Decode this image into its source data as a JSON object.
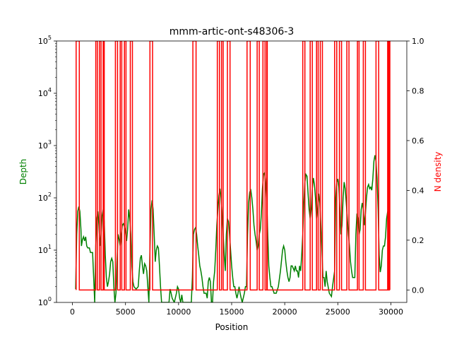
{
  "chart_data": {
    "type": "line",
    "title": "mmm-artic-ont-s48306-3",
    "xlabel": "Position",
    "ylabel_left": "Depth",
    "ylabel_right": "N density",
    "xlim": [
      -1500,
      31500
    ],
    "ylim_left": [
      1,
      100000
    ],
    "yscale_left": "log",
    "ylim_right": [
      -0.05,
      1.0
    ],
    "grid": false,
    "legend": "none",
    "x_ticks": [
      0,
      5000,
      10000,
      15000,
      20000,
      25000,
      30000
    ],
    "x_tick_labels": [
      "0",
      "5000",
      "10000",
      "15000",
      "20000",
      "25000",
      "30000"
    ],
    "left_tick_bases": [
      "10",
      "10",
      "10",
      "10",
      "10",
      "10"
    ],
    "left_tick_exps": [
      "0",
      "1",
      "2",
      "3",
      "4",
      "5"
    ],
    "right_ticks": [
      0.0,
      0.2,
      0.4,
      0.6,
      0.8,
      1.0
    ],
    "right_tick_labels": [
      "0.0",
      "0.2",
      "0.4",
      "0.6",
      "0.8",
      "1.0"
    ],
    "colors": {
      "depth": "#008000",
      "n_density": "#ff0000"
    },
    "series": [
      {
        "axis": "left",
        "color": "#008000",
        "points": [
          [
            300,
            1.8
          ],
          [
            400,
            20
          ],
          [
            500,
            55
          ],
          [
            600,
            68
          ],
          [
            700,
            55
          ],
          [
            800,
            25
          ],
          [
            850,
            12
          ],
          [
            950,
            16
          ],
          [
            1050,
            18
          ],
          [
            1150,
            15
          ],
          [
            1250,
            18
          ],
          [
            1350,
            12
          ],
          [
            1450,
            11
          ],
          [
            1600,
            11
          ],
          [
            1700,
            9
          ],
          [
            1800,
            9
          ],
          [
            1900,
            9
          ],
          [
            2000,
            3
          ],
          [
            2100,
            1
          ],
          [
            2200,
            12
          ],
          [
            2300,
            40
          ],
          [
            2400,
            55
          ],
          [
            2500,
            30
          ],
          [
            2600,
            12
          ],
          [
            2700,
            20
          ],
          [
            2800,
            45
          ],
          [
            2900,
            60
          ],
          [
            3000,
            35
          ],
          [
            3100,
            8
          ],
          [
            3200,
            3
          ],
          [
            3300,
            2
          ],
          [
            3400,
            2.5
          ],
          [
            3500,
            3.5
          ],
          [
            3600,
            6
          ],
          [
            3700,
            7
          ],
          [
            3800,
            6
          ],
          [
            3900,
            2
          ],
          [
            4000,
            1
          ],
          [
            4100,
            1.5
          ],
          [
            4200,
            6
          ],
          [
            4300,
            20
          ],
          [
            4400,
            16
          ],
          [
            4500,
            12
          ],
          [
            4600,
            20
          ],
          [
            4700,
            30
          ],
          [
            4800,
            32
          ],
          [
            4900,
            28
          ],
          [
            5000,
            22
          ],
          [
            5100,
            15
          ],
          [
            5200,
            25
          ],
          [
            5300,
            60
          ],
          [
            5400,
            40
          ],
          [
            5500,
            20
          ],
          [
            5600,
            5
          ],
          [
            5700,
            2.5
          ],
          [
            5800,
            2
          ],
          [
            6000,
            1.8
          ],
          [
            6200,
            2
          ],
          [
            6300,
            4
          ],
          [
            6400,
            7
          ],
          [
            6500,
            8
          ],
          [
            6600,
            5
          ],
          [
            6700,
            3.5
          ],
          [
            6800,
            5.5
          ],
          [
            6900,
            5
          ],
          [
            7000,
            4
          ],
          [
            7100,
            2
          ],
          [
            7200,
            1
          ],
          [
            7300,
            10
          ],
          [
            7400,
            60
          ],
          [
            7500,
            90
          ],
          [
            7600,
            60
          ],
          [
            7700,
            20
          ],
          [
            7800,
            6
          ],
          [
            7900,
            10
          ],
          [
            8000,
            12
          ],
          [
            8100,
            11
          ],
          [
            8200,
            5
          ],
          [
            8300,
            2
          ],
          [
            8400,
            1
          ],
          [
            8600,
            1
          ],
          [
            8800,
            1
          ],
          [
            9000,
            1
          ],
          [
            9100,
            1
          ],
          [
            9200,
            1.8
          ],
          [
            9300,
            1.5
          ],
          [
            9400,
            1.2
          ],
          [
            9600,
            1
          ],
          [
            9800,
            1.5
          ],
          [
            9900,
            2
          ],
          [
            10000,
            1.8
          ],
          [
            10100,
            1.2
          ],
          [
            10200,
            1
          ],
          [
            10300,
            1.4
          ],
          [
            10400,
            1
          ],
          [
            10600,
            1
          ],
          [
            10800,
            1
          ],
          [
            11000,
            1
          ],
          [
            11200,
            1
          ],
          [
            11300,
            3
          ],
          [
            11400,
            20
          ],
          [
            11500,
            25
          ],
          [
            11600,
            27
          ],
          [
            11700,
            20
          ],
          [
            11800,
            12
          ],
          [
            11900,
            8
          ],
          [
            12000,
            5
          ],
          [
            12100,
            4
          ],
          [
            12200,
            3
          ],
          [
            12300,
            2
          ],
          [
            12400,
            1.5
          ],
          [
            12500,
            1.5
          ],
          [
            12600,
            1.5
          ],
          [
            12700,
            1.2
          ],
          [
            12800,
            2.5
          ],
          [
            12900,
            3
          ],
          [
            13000,
            2.5
          ],
          [
            13100,
            1
          ],
          [
            13200,
            1
          ],
          [
            13300,
            2.5
          ],
          [
            13400,
            4
          ],
          [
            13500,
            10
          ],
          [
            13600,
            30
          ],
          [
            13700,
            60
          ],
          [
            13800,
            110
          ],
          [
            13900,
            150
          ],
          [
            14000,
            100
          ],
          [
            14100,
            50
          ],
          [
            14200,
            20
          ],
          [
            14300,
            8
          ],
          [
            14400,
            4
          ],
          [
            14500,
            20
          ],
          [
            14600,
            40
          ],
          [
            14700,
            35
          ],
          [
            14800,
            20
          ],
          [
            14900,
            10
          ],
          [
            15000,
            5
          ],
          [
            15100,
            3
          ],
          [
            15200,
            2
          ],
          [
            15300,
            2
          ],
          [
            15400,
            1.5
          ],
          [
            15500,
            1.2
          ],
          [
            15600,
            1.5
          ],
          [
            15700,
            2
          ],
          [
            15800,
            1.5
          ],
          [
            15900,
            1.2
          ],
          [
            16000,
            1
          ],
          [
            16200,
            1.5
          ],
          [
            16300,
            2
          ],
          [
            16400,
            2
          ],
          [
            16500,
            20
          ],
          [
            16600,
            80
          ],
          [
            16700,
            130
          ],
          [
            16800,
            140
          ],
          [
            16900,
            100
          ],
          [
            17000,
            60
          ],
          [
            17100,
            30
          ],
          [
            17200,
            20
          ],
          [
            17300,
            15
          ],
          [
            17400,
            10
          ],
          [
            17500,
            12
          ],
          [
            17600,
            20
          ],
          [
            17700,
            25
          ],
          [
            17800,
            50
          ],
          [
            17900,
            150
          ],
          [
            18000,
            280
          ],
          [
            18100,
            300
          ],
          [
            18200,
            200
          ],
          [
            18300,
            100
          ],
          [
            18400,
            20
          ],
          [
            18500,
            5
          ],
          [
            18600,
            3
          ],
          [
            18700,
            2
          ],
          [
            18800,
            2
          ],
          [
            19000,
            1.5
          ],
          [
            19200,
            1.5
          ],
          [
            19400,
            2
          ],
          [
            19600,
            4
          ],
          [
            19800,
            10
          ],
          [
            19900,
            12
          ],
          [
            20000,
            10
          ],
          [
            20100,
            6
          ],
          [
            20200,
            4
          ],
          [
            20300,
            3
          ],
          [
            20400,
            2.5
          ],
          [
            20500,
            3
          ],
          [
            20600,
            5
          ],
          [
            20700,
            5
          ],
          [
            20800,
            4.5
          ],
          [
            20900,
            4
          ],
          [
            21000,
            5
          ],
          [
            21100,
            4
          ],
          [
            21200,
            4
          ],
          [
            21300,
            3
          ],
          [
            21400,
            5
          ],
          [
            21500,
            4
          ],
          [
            21600,
            8
          ],
          [
            21700,
            20
          ],
          [
            21800,
            80
          ],
          [
            21900,
            200
          ],
          [
            22000,
            280
          ],
          [
            22100,
            260
          ],
          [
            22200,
            120
          ],
          [
            22300,
            60
          ],
          [
            22400,
            40
          ],
          [
            22500,
            60
          ],
          [
            22600,
            150
          ],
          [
            22700,
            240
          ],
          [
            22800,
            180
          ],
          [
            22900,
            100
          ],
          [
            23000,
            40
          ],
          [
            23100,
            60
          ],
          [
            23200,
            120
          ],
          [
            23300,
            80
          ],
          [
            23400,
            30
          ],
          [
            23500,
            10
          ],
          [
            23600,
            3
          ],
          [
            23700,
            3
          ],
          [
            23800,
            2
          ],
          [
            23900,
            4
          ],
          [
            24000,
            2.5
          ],
          [
            24200,
            1.5
          ],
          [
            24400,
            1.3
          ],
          [
            24500,
            2
          ],
          [
            24700,
            4
          ],
          [
            24800,
            100
          ],
          [
            24900,
            200
          ],
          [
            25000,
            230
          ],
          [
            25100,
            160
          ],
          [
            25200,
            60
          ],
          [
            25300,
            20
          ],
          [
            25400,
            30
          ],
          [
            25500,
            100
          ],
          [
            25600,
            200
          ],
          [
            25700,
            150
          ],
          [
            25800,
            80
          ],
          [
            25900,
            40
          ],
          [
            26000,
            20
          ],
          [
            26100,
            12
          ],
          [
            26200,
            6
          ],
          [
            26300,
            4
          ],
          [
            26400,
            3
          ],
          [
            26500,
            3
          ],
          [
            26600,
            3
          ],
          [
            26700,
            20
          ],
          [
            26800,
            50
          ],
          [
            26900,
            40
          ],
          [
            27000,
            20
          ],
          [
            27100,
            25
          ],
          [
            27200,
            60
          ],
          [
            27300,
            80
          ],
          [
            27400,
            60
          ],
          [
            27500,
            30
          ],
          [
            27600,
            50
          ],
          [
            27700,
            100
          ],
          [
            27800,
            160
          ],
          [
            27900,
            180
          ],
          [
            28000,
            150
          ],
          [
            28100,
            160
          ],
          [
            28200,
            140
          ],
          [
            28300,
            230
          ],
          [
            28400,
            500
          ],
          [
            28500,
            650
          ],
          [
            28600,
            500
          ],
          [
            28700,
            230
          ],
          [
            28800,
            60
          ],
          [
            28900,
            8
          ],
          [
            29000,
            3.8
          ],
          [
            29100,
            5
          ],
          [
            29200,
            10
          ],
          [
            29300,
            12
          ],
          [
            29400,
            12
          ],
          [
            29500,
            18
          ],
          [
            29600,
            40
          ],
          [
            29700,
            55
          ],
          [
            29800,
            10
          ],
          [
            29850,
            5
          ]
        ]
      },
      {
        "axis": "right",
        "color": "#ff0000",
        "regions_n1": [
          [
            350,
            650
          ],
          [
            2200,
            2350
          ],
          [
            2550,
            2700
          ],
          [
            2900,
            3000
          ],
          [
            4050,
            4250
          ],
          [
            4500,
            4650
          ],
          [
            4900,
            5050
          ],
          [
            5450,
            5650
          ],
          [
            7300,
            7550
          ],
          [
            11350,
            11650
          ],
          [
            13650,
            13850
          ],
          [
            14050,
            14200
          ],
          [
            14600,
            14850
          ],
          [
            16450,
            16750
          ],
          [
            17400,
            17600
          ],
          [
            17950,
            18150
          ],
          [
            18300,
            18350
          ],
          [
            21700,
            21900
          ],
          [
            22400,
            22600
          ],
          [
            23000,
            23150
          ],
          [
            23350,
            23550
          ],
          [
            24700,
            24900
          ],
          [
            25150,
            25350
          ],
          [
            25850,
            26050
          ],
          [
            26850,
            27000
          ],
          [
            27400,
            27600
          ],
          [
            28600,
            28850
          ],
          [
            29700,
            29800
          ],
          [
            29850,
            29900
          ]
        ],
        "range": [
          350,
          29900
        ]
      }
    ]
  }
}
